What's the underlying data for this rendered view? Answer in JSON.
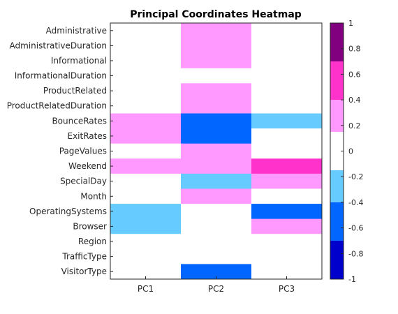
{
  "chart_data": {
    "type": "heatmap",
    "title": "Principal Coordinates Heatmap",
    "columns": [
      "PC1",
      "PC2",
      "PC3"
    ],
    "rows": [
      "Administrative",
      "AdministrativeDuration",
      "Informational",
      "InformationalDuration",
      "ProductRelated",
      "ProductRelatedDuration",
      "BounceRates",
      "ExitRates",
      "PageValues",
      "Weekend",
      "SpecialDay",
      "Month",
      "OperatingSystems",
      "Browser",
      "Region",
      "TrafficType",
      "VisitorType"
    ],
    "values": [
      [
        0,
        0.3,
        0
      ],
      [
        0,
        0.3,
        0
      ],
      [
        0,
        0.3,
        0
      ],
      [
        0,
        0,
        0
      ],
      [
        0,
        0.3,
        0
      ],
      [
        0,
        0.3,
        0
      ],
      [
        0.3,
        -0.5,
        -0.3
      ],
      [
        0.3,
        -0.5,
        0
      ],
      [
        0,
        0.3,
        0
      ],
      [
        0.3,
        0.3,
        0.5
      ],
      [
        0,
        -0.3,
        0.3
      ],
      [
        0,
        0.3,
        0
      ],
      [
        -0.3,
        0,
        -0.5
      ],
      [
        -0.3,
        0,
        0.3
      ],
      [
        0,
        0,
        0
      ],
      [
        0,
        0,
        0
      ],
      [
        0,
        -0.5,
        0
      ]
    ],
    "colorbar": {
      "range": [
        -1,
        1
      ],
      "ticks": [
        "-1",
        "-0.8",
        "-0.6",
        "-0.4",
        "-0.2",
        "0",
        "0.2",
        "0.4",
        "0.6",
        "0.8",
        "1"
      ],
      "bands": [
        {
          "from": -1.0,
          "to": -0.7,
          "color": "#0000cc"
        },
        {
          "from": -0.7,
          "to": -0.4,
          "color": "#0066ff"
        },
        {
          "from": -0.4,
          "to": -0.15,
          "color": "#66ccff"
        },
        {
          "from": -0.15,
          "to": 0.15,
          "color": "#ffffff"
        },
        {
          "from": 0.15,
          "to": 0.4,
          "color": "#ff99ff"
        },
        {
          "from": 0.4,
          "to": 0.7,
          "color": "#ff33cc"
        },
        {
          "from": 0.7,
          "to": 1.0,
          "color": "#800080"
        }
      ]
    }
  }
}
